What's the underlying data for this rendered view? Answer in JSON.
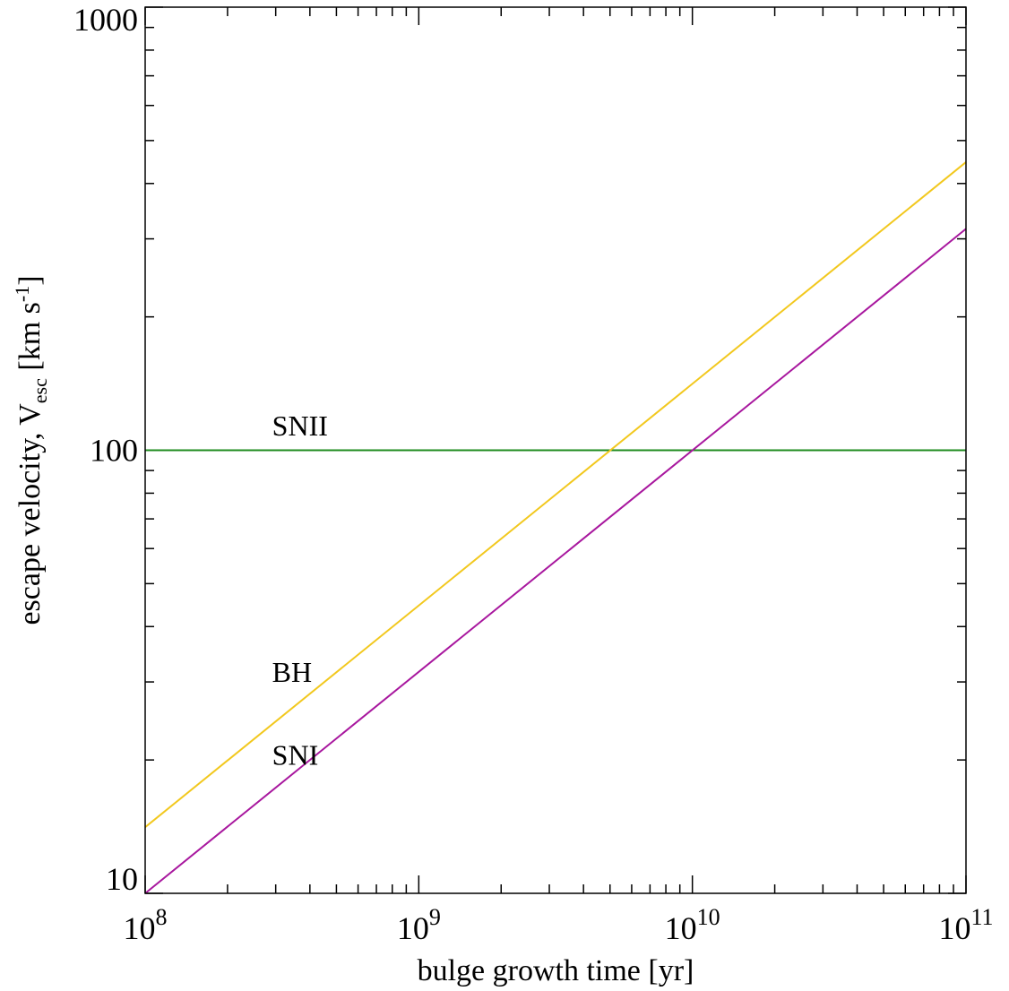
{
  "chart_data": {
    "type": "line",
    "xlabel": "bulge growth time [yr]",
    "ylabel": {
      "main": "escape velocity, V",
      "subscript": "esc",
      "unit_open": "[km s",
      "unit_sup": "-1",
      "unit_close": "]"
    },
    "xscale": "log",
    "yscale": "log",
    "xlim": [
      100000000,
      100000000000
    ],
    "ylim": [
      10,
      1000
    ],
    "x_ticks": [
      {
        "base": "10",
        "exp": "8"
      },
      {
        "base": "10",
        "exp": "9"
      },
      {
        "base": "10",
        "exp": "10"
      },
      {
        "base": "10",
        "exp": "11"
      }
    ],
    "y_ticks": [
      "10",
      "100",
      "1000"
    ],
    "grid": false,
    "series": [
      {
        "name": "SNII",
        "color": "#1e8b1e",
        "x": [
          100000000,
          100000000000
        ],
        "y": [
          100,
          100
        ]
      },
      {
        "name": "BH",
        "color": "#f2c81e",
        "x": [
          100000000,
          100000000000
        ],
        "y": [
          14.1,
          447
        ]
      },
      {
        "name": "SNI",
        "color": "#a8179e",
        "x": [
          100000000,
          100000000000
        ],
        "y": [
          10,
          316
        ]
      }
    ],
    "annotations": [
      {
        "text": "SNII",
        "x": 300000000,
        "y": 108
      },
      {
        "text": "BH",
        "x": 300000000,
        "y": 30
      },
      {
        "text": "SNI",
        "x": 300000000,
        "y": 19.5
      }
    ]
  }
}
